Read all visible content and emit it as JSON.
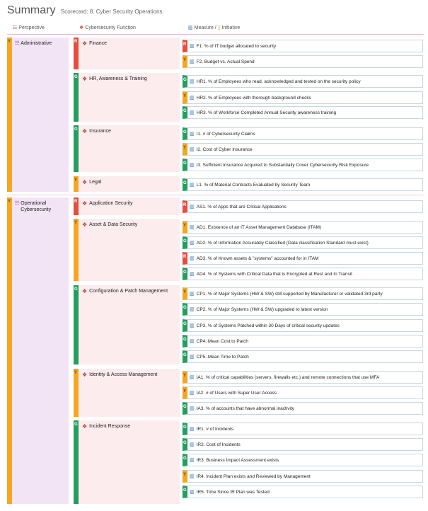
{
  "header": {
    "title": "Summary",
    "subtitle": "Scorecard: 8. Cyber Security Operations"
  },
  "columns": {
    "perspective": "Perspective",
    "function": "Cybersecurity Function",
    "measure": "Measure /",
    "initiative": "Initiative"
  },
  "icons": {
    "perspective": "grid-icon",
    "function": "diamond-icon",
    "measure": "bar-chart-icon",
    "initiative": "lightbulb-icon"
  },
  "status_colors": {
    "R": "#e74c3c",
    "Y": "#f5a623",
    "G": "#229e5e"
  },
  "perspectives": [
    {
      "status": "Y",
      "name": "Administrative"
    },
    {
      "status": "Y",
      "name": "Operational Cybersecurity"
    }
  ],
  "functions": [
    {
      "status": "R",
      "name": "Finance"
    },
    {
      "status": "G",
      "name": "HR, Awareness & Training"
    },
    {
      "status": "G",
      "name": "Insurance"
    },
    {
      "status": "Y",
      "name": "Legal"
    },
    {
      "status": "R",
      "name": "Application Security"
    },
    {
      "status": "Y",
      "name": "Asset & Data Security"
    },
    {
      "status": "G",
      "name": "Configuration & Patch Management"
    },
    {
      "status": "Y",
      "name": "Identity & Access Management"
    },
    {
      "status": "G",
      "name": "Incident Response"
    }
  ],
  "measures": [
    {
      "status": "R",
      "name": "F1. % of IT budget allocated to security"
    },
    {
      "status": "Y",
      "name": "F2. Budget vs. Actual Spend"
    },
    {
      "status": "G",
      "name": "HR1. % of Employees who read, acknowledged and tested on the security policy"
    },
    {
      "status": "Y",
      "name": "HR2. % of Employees with thorough background checks"
    },
    {
      "status": "G",
      "name": "HR3. % of Workforce Completed Annual Security awareness training"
    },
    {
      "status": "G",
      "name": "I1. # of Cybersecurity Claims"
    },
    {
      "status": "Y",
      "name": "I2. Cost of Cyber Insurance"
    },
    {
      "status": "G",
      "name": "I3. Sufficient Insurance Acquired to Substantially Cover Cybersecurity Risk Exposure"
    },
    {
      "status": "G",
      "name": "L1. % of Material Contracts Evaluated by Security Team"
    },
    {
      "status": "R",
      "name": "AS1. % of Apps that are Critical Applications"
    },
    {
      "status": "Y",
      "name": "AD1. Existence of an IT Asset Management Database (ITAM)"
    },
    {
      "status": "G",
      "name": "AD2. % of Information Accurately Classified (Data classification Standard must exist)"
    },
    {
      "status": "R",
      "name": "AD3. % of Known assets & \"systems\" accounted for in ITAM"
    },
    {
      "status": "G",
      "name": "AD4. % of Systems with Critical Data that is Encrypted at Rest and In Transit"
    },
    {
      "status": "Y",
      "name": "CP1. % of Major Systems (HW & SW) still supported by Manufacturer or validated 3rd party"
    },
    {
      "status": "G",
      "name": "CP2. % of Major Systems (HW & SW) upgraded to latest version"
    },
    {
      "status": "G",
      "name": "CP3. % of Systems Patched within 30 Days of critical security updates"
    },
    {
      "status": "G",
      "name": "CP4. Mean Cost to Patch"
    },
    {
      "status": "G",
      "name": "CP5. Mean Time to Patch"
    },
    {
      "status": "Y",
      "name": "IA1. % of critical capabilities (servers, firewalls etc.) and remote connections that use MFA"
    },
    {
      "status": "Y",
      "name": "IA2. # of Users with Super User Access"
    },
    {
      "status": "G",
      "name": "IA3. % of accounts that have abnormal inactivity"
    },
    {
      "status": "G",
      "name": "IR1. # of Incidents"
    },
    {
      "status": "G",
      "name": "IR2. Cost of Incidents"
    },
    {
      "status": "G",
      "name": "IR3. Business Impact Assessment exists"
    },
    {
      "status": "Y",
      "name": "IR4. Incident Plan exists and Reviewed by Management"
    },
    {
      "status": "G",
      "name": "IR5. Time Since IR Plan was Tested"
    }
  ]
}
